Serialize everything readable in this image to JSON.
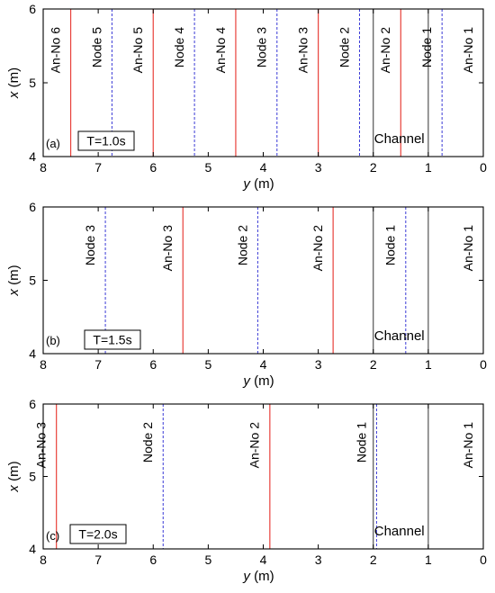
{
  "chart_data": [
    {
      "type": "line",
      "panel": "(a)",
      "period_label": "T=1.0s",
      "channel_label": "Channel",
      "xlabel_var": "y",
      "xlabel_unit": " (m)",
      "ylabel_var": "x",
      "ylabel_unit": " (m)",
      "xlim": [
        8,
        0
      ],
      "ylim": [
        4,
        6
      ],
      "x_ticks": [
        "8",
        "7",
        "6",
        "5",
        "4",
        "3",
        "2",
        "1",
        "0"
      ],
      "y_ticks": [
        "4",
        "5",
        "6"
      ],
      "channel_edges": [
        2,
        1
      ],
      "lines": [
        {
          "label": "An-No 6",
          "y": 7.5,
          "kind": "antinode",
          "color": "#e8413b"
        },
        {
          "label": "Node 5",
          "y": 6.75,
          "kind": "node",
          "color": "#3a3ad6"
        },
        {
          "label": "An-No 5",
          "y": 6.0,
          "kind": "antinode",
          "color": "#e8413b"
        },
        {
          "label": "Node 4",
          "y": 5.25,
          "kind": "node",
          "color": "#3a3ad6"
        },
        {
          "label": "An-No 4",
          "y": 4.5,
          "kind": "antinode",
          "color": "#e8413b"
        },
        {
          "label": "Node 3",
          "y": 3.75,
          "kind": "node",
          "color": "#3a3ad6"
        },
        {
          "label": "An-No 3",
          "y": 3.0,
          "kind": "antinode",
          "color": "#e8413b"
        },
        {
          "label": "Node 2",
          "y": 2.25,
          "kind": "node",
          "color": "#3a3ad6"
        },
        {
          "label": "An-No 2",
          "y": 1.5,
          "kind": "antinode",
          "color": "#e8413b"
        },
        {
          "label": "Node 1",
          "y": 0.75,
          "kind": "node",
          "color": "#3a3ad6"
        },
        {
          "label": "An-No 1",
          "y": 0.0,
          "kind": "antinode",
          "color": "#e8413b"
        }
      ]
    },
    {
      "type": "line",
      "panel": "(b)",
      "period_label": "T=1.5s",
      "channel_label": "Channel",
      "xlabel_var": "y",
      "xlabel_unit": " (m)",
      "ylabel_var": "x",
      "ylabel_unit": " (m)",
      "xlim": [
        8,
        0
      ],
      "ylim": [
        4,
        6
      ],
      "x_ticks": [
        "8",
        "7",
        "6",
        "5",
        "4",
        "3",
        "2",
        "1",
        "0"
      ],
      "y_ticks": [
        "4",
        "5",
        "6"
      ],
      "channel_edges": [
        2,
        1
      ],
      "lines": [
        {
          "label": "Node 3",
          "y": 6.87,
          "kind": "node",
          "color": "#3a3ad6"
        },
        {
          "label": "An-No 3",
          "y": 5.46,
          "kind": "antinode",
          "color": "#e8413b"
        },
        {
          "label": "Node 2",
          "y": 4.1,
          "kind": "node",
          "color": "#3a3ad6"
        },
        {
          "label": "An-No 2",
          "y": 2.73,
          "kind": "antinode",
          "color": "#e8413b"
        },
        {
          "label": "Node 1",
          "y": 1.41,
          "kind": "node",
          "color": "#3a3ad6"
        },
        {
          "label": "An-No 1",
          "y": 0.0,
          "kind": "antinode",
          "color": "#e8413b"
        }
      ]
    },
    {
      "type": "line",
      "panel": "(c)",
      "period_label": "T=2.0s",
      "channel_label": "Channel",
      "xlabel_var": "y",
      "xlabel_unit": " (m)",
      "ylabel_var": "x",
      "ylabel_unit": " (m)",
      "xlim": [
        8,
        0
      ],
      "ylim": [
        4,
        6
      ],
      "x_ticks": [
        "8",
        "7",
        "6",
        "5",
        "4",
        "3",
        "2",
        "1",
        "0"
      ],
      "y_ticks": [
        "4",
        "5",
        "6"
      ],
      "channel_edges": [
        2,
        1
      ],
      "lines": [
        {
          "label": "An-No 3",
          "y": 7.76,
          "kind": "antinode",
          "color": "#e8413b"
        },
        {
          "label": "Node 2",
          "y": 5.82,
          "kind": "node",
          "color": "#3a3ad6"
        },
        {
          "label": "An-No 2",
          "y": 3.88,
          "kind": "antinode",
          "color": "#e8413b"
        },
        {
          "label": "Node 1",
          "y": 1.94,
          "kind": "node",
          "color": "#3a3ad6"
        },
        {
          "label": "An-No 1",
          "y": 0.0,
          "kind": "antinode",
          "color": "#e8413b"
        }
      ]
    }
  ]
}
